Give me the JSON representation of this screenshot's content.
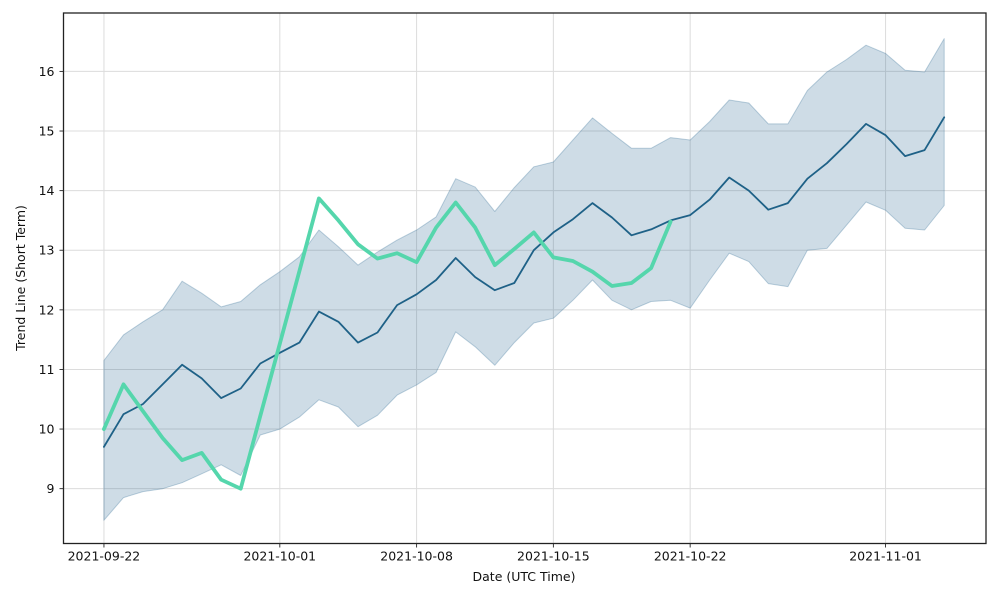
{
  "chart_data": {
    "type": "line",
    "title": "",
    "xlabel": "Date (UTC Time)",
    "ylabel": "Trend Line (Short Term)",
    "grid": true,
    "legend": "none",
    "background": "#ffffff",
    "grid_color": "#dcdcdc",
    "spine_color": "#222222",
    "tick_color": "#262626",
    "start_date": "2021-09-22",
    "n_days": 44,
    "xlim_days": [
      -2.07,
      45.14
    ],
    "ylim": [
      8.08,
      16.98
    ],
    "y_ticks": [
      9,
      10,
      11,
      12,
      13,
      14,
      15,
      16
    ],
    "x_ticks": [
      {
        "day": 0,
        "label": "2021-09-22"
      },
      {
        "day": 9,
        "label": "2021-10-01"
      },
      {
        "day": 16,
        "label": "2021-10-08"
      },
      {
        "day": 23,
        "label": "2021-10-15"
      },
      {
        "day": 30,
        "label": "2021-10-22"
      },
      {
        "day": 40,
        "label": "2021-11-01"
      }
    ],
    "series": [
      {
        "name": "forecast-trend-line",
        "color": "#1e6187",
        "width": 1.8,
        "start_day": 0,
        "values": [
          9.7,
          10.25,
          10.42,
          10.75,
          11.08,
          10.85,
          10.52,
          10.68,
          11.1,
          11.28,
          11.45,
          11.97,
          11.8,
          11.45,
          11.62,
          12.08,
          12.26,
          12.5,
          12.87,
          12.55,
          12.33,
          12.45,
          13.0,
          13.3,
          13.52,
          13.79,
          13.55,
          13.25,
          13.35,
          13.5,
          13.59,
          13.85,
          14.22,
          14.0,
          13.68,
          13.79,
          14.2,
          14.46,
          14.78,
          15.12,
          14.93,
          14.58,
          14.68,
          15.23
        ]
      },
      {
        "name": "actual-price-line",
        "color": "#55d6ac",
        "width": 3.8,
        "start_day": 0,
        "values": [
          10.0,
          10.75,
          10.3,
          9.85,
          9.48,
          9.6,
          9.15,
          9.0,
          10.22,
          11.43,
          12.65,
          13.87,
          13.5,
          13.1,
          12.86,
          12.95,
          12.8,
          13.38,
          13.8,
          13.38,
          12.75,
          13.02,
          13.3,
          12.88,
          12.82,
          12.64,
          12.4,
          12.45,
          12.7,
          13.48
        ]
      }
    ],
    "band": {
      "name": "prediction-interval-band",
      "fill": "rgba(31,97,141,0.22)",
      "edge": "rgba(31,97,141,0.28)",
      "start_day": 0,
      "upper": [
        11.15,
        11.58,
        11.8,
        12.0,
        12.48,
        12.28,
        12.05,
        12.14,
        12.42,
        12.64,
        12.89,
        13.34,
        13.06,
        12.75,
        12.97,
        13.17,
        13.34,
        13.56,
        14.2,
        14.06,
        13.65,
        14.05,
        14.4,
        14.48,
        14.85,
        15.22,
        14.96,
        14.71,
        14.71,
        14.89,
        14.85,
        15.16,
        15.52,
        15.47,
        15.12,
        15.12,
        15.68,
        15.99,
        16.2,
        16.44,
        16.3,
        16.02,
        15.99,
        16.55
      ],
      "lower": [
        8.47,
        8.85,
        8.95,
        9.0,
        9.1,
        9.25,
        9.4,
        9.22,
        9.9,
        10.0,
        10.2,
        10.49,
        10.37,
        10.04,
        10.23,
        10.57,
        10.74,
        10.95,
        11.63,
        11.38,
        11.07,
        11.45,
        11.78,
        11.86,
        12.16,
        12.5,
        12.16,
        12.0,
        12.14,
        12.16,
        12.03,
        12.5,
        12.95,
        12.81,
        12.44,
        12.39,
        13.0,
        13.03,
        13.42,
        13.81,
        13.67,
        13.37,
        13.34,
        13.75
      ]
    }
  }
}
